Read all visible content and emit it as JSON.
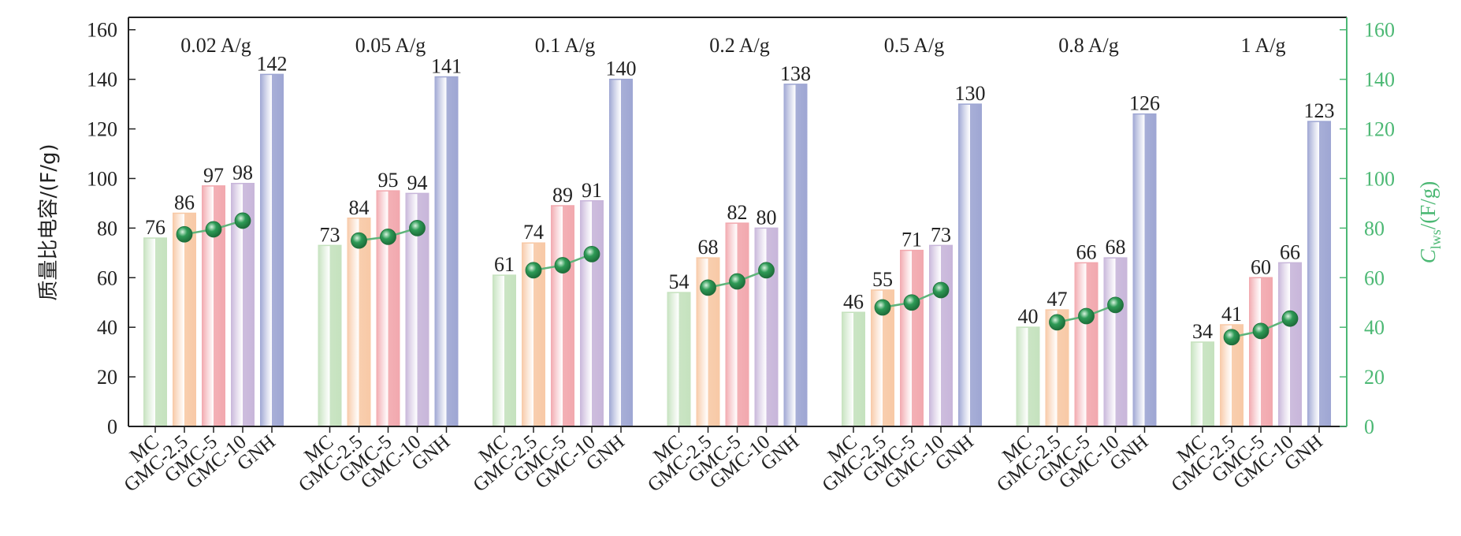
{
  "chart_data": {
    "type": "bar",
    "groups": [
      "0.02 A/g",
      "0.05 A/g",
      "0.1 A/g",
      "0.2 A/g",
      "0.5 A/g",
      "0.8 A/g",
      "1 A/g"
    ],
    "categories": [
      "MC",
      "GMC-2.5",
      "GMC-5",
      "GMC-10",
      "GNH"
    ],
    "values": [
      [
        76,
        86,
        97,
        98,
        142
      ],
      [
        73,
        84,
        95,
        94,
        141
      ],
      [
        61,
        74,
        89,
        91,
        140
      ],
      [
        54,
        68,
        82,
        80,
        138
      ],
      [
        46,
        55,
        71,
        73,
        130
      ],
      [
        40,
        47,
        66,
        68,
        126
      ],
      [
        34,
        41,
        60,
        66,
        123
      ]
    ],
    "line_series": {
      "axis": "right",
      "x_categories": [
        "GMC-2.5",
        "GMC-5",
        "GMC-10"
      ],
      "values": [
        [
          77.5,
          79.5,
          83
        ],
        [
          75,
          76.5,
          80
        ],
        [
          63,
          65,
          69.5
        ],
        [
          56,
          58.5,
          63
        ],
        [
          48,
          50,
          55
        ],
        [
          42,
          44.5,
          49
        ],
        [
          36,
          38.5,
          43.5
        ]
      ]
    },
    "ylabel": "质量比电容/(F/g)",
    "ylabel_right_main": "C",
    "ylabel_right_sub": "lws",
    "ylabel_right_rest": "/(F/g)",
    "ylim": [
      0,
      165
    ],
    "yticks": [
      0,
      20,
      40,
      60,
      80,
      100,
      120,
      140,
      160
    ],
    "grid": false,
    "colors": {
      "bars": [
        "#c5e2be",
        "#f8c9a6",
        "#f2a8ae",
        "#c8b6da",
        "#9ea6d3"
      ],
      "line": "#5fb47a",
      "marker": "#2e9a56",
      "right_axis": "#4cb874"
    }
  }
}
